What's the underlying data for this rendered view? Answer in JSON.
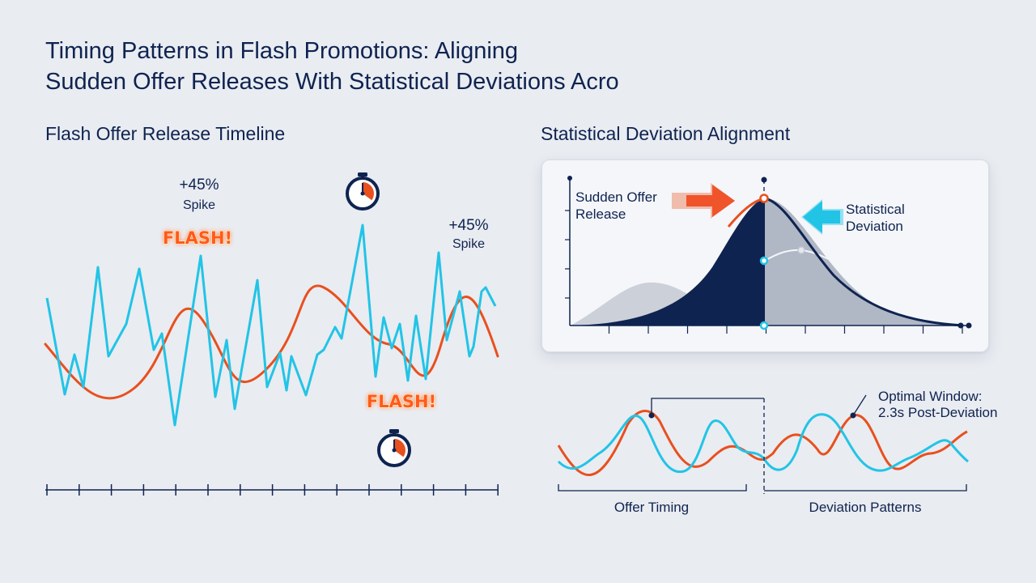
{
  "title_lines": [
    "Timing Patterns in Flash Promotions: Aligning",
    "Sudden Offer Releases With Statistical Deviations Acro"
  ],
  "left_panel": {
    "title": "Flash Offer Release Timeline",
    "spike_labels": [
      {
        "value": "+45%",
        "label": "Spike"
      },
      {
        "value": "+45%",
        "label": "Spike"
      }
    ],
    "flash_badges": [
      "FLASH!",
      "FLASH!"
    ],
    "icons": [
      "stopwatch-icon",
      "stopwatch-icon"
    ],
    "colors": {
      "orange": "#e8501e",
      "cyan": "#22c4e6"
    }
  },
  "right_panel": {
    "title": "Statistical Deviation Alignment",
    "card": {
      "left_label_lines": [
        "Sudden Offer",
        "Release"
      ],
      "right_label_lines": [
        "Statistical",
        "Deviation"
      ],
      "colors": {
        "navy": "#0f2350",
        "orange": "#e8501e",
        "cyan": "#22c4e6",
        "gray": "#9aa1b3"
      }
    },
    "bottom": {
      "annotation_lines": [
        "Optimal Window:",
        "2.3s Post-Deviation"
      ],
      "bracket_left_label": "Offer Timing",
      "bracket_right_label": "Deviation Patterns"
    }
  }
}
